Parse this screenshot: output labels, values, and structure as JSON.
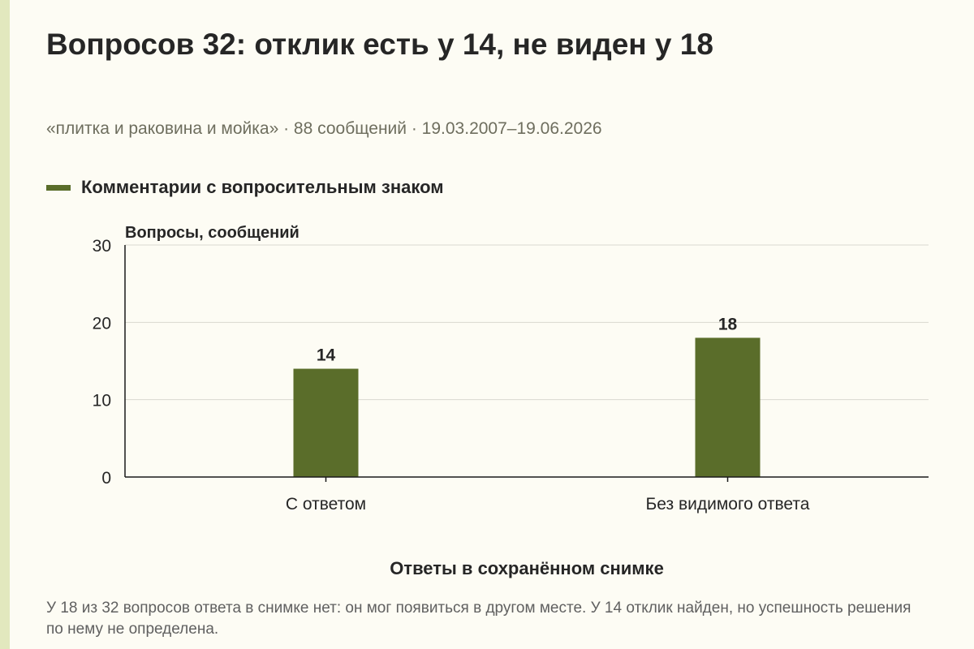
{
  "page": {
    "title": "Вопросов 32: отклик есть у 14, не виден у 18",
    "subtitle": "«плитка и раковина и мойка» · 88 сообщений · 19.03.2007–19.06.2026",
    "footnote": "У 18 из 32 вопросов ответа в снимке нет: он мог появиться в другом месте. У 14 отклик найден, но успешность решения по нему не определена."
  },
  "colors": {
    "bar": "#5a6d2a",
    "grid": "#d9d9d0",
    "axis": "#1a1a1a",
    "accent_strip": "#e2e8be"
  },
  "chart_data": {
    "type": "bar",
    "categories": [
      "С ответом",
      "Без видимого ответа"
    ],
    "series": [
      {
        "name": "Комментарии с вопросительным знаком",
        "values": [
          14,
          18
        ]
      }
    ],
    "xlabel": "Ответы в сохранённом снимке",
    "ylabel": "Вопросы, сообщений",
    "ylim": [
      0,
      30
    ],
    "yticks": [
      0,
      10,
      20,
      30
    ],
    "data_labels": [
      "14",
      "18"
    ],
    "grid": true,
    "legend": "top-left"
  }
}
